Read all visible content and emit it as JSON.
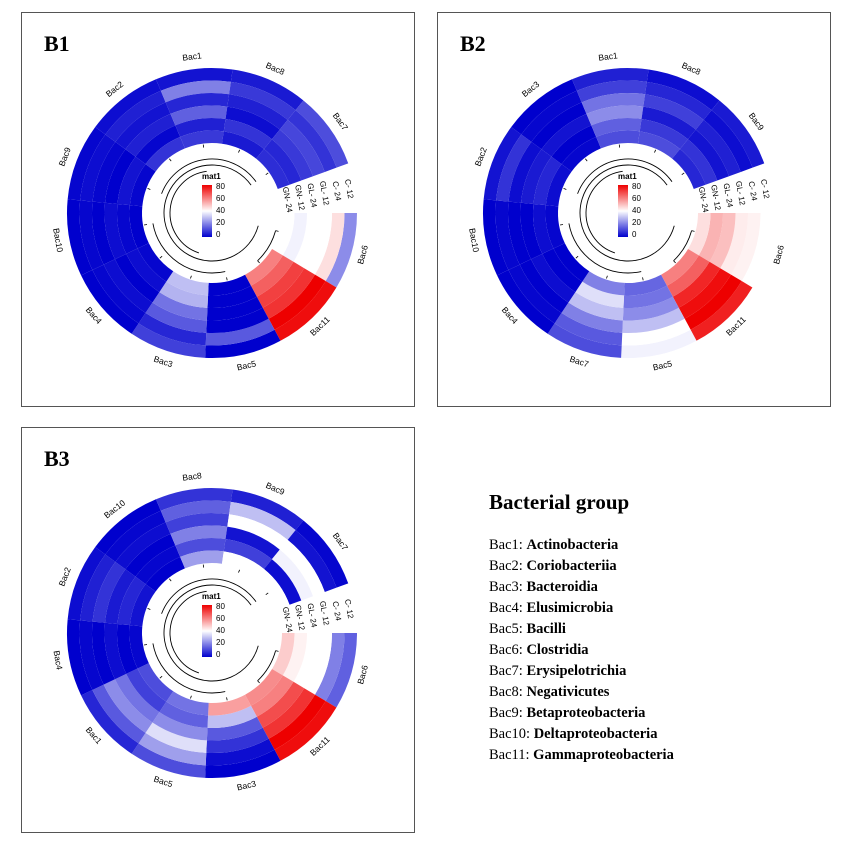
{
  "colors": {
    "low": "#0000cd",
    "mid": "#ffffff",
    "high": "#ee0000"
  },
  "color_legend": {
    "title": "mat1",
    "ticks": [
      "80",
      "60",
      "40",
      "20",
      "0"
    ]
  },
  "track_labels": [
    "C- 12",
    "C- 24",
    "GL- 12",
    "GL- 24",
    "GN- 12",
    "GN- 24"
  ],
  "chart_data": [
    {
      "type": "heatmap",
      "panel": "B1",
      "sectors": [
        "Bac6",
        "Bac11",
        "Bac5",
        "Bac3",
        "Bac4",
        "Bac10",
        "Bac9",
        "Bac2",
        "Bac1",
        "Bac8",
        "Bac7"
      ],
      "tracks": [
        "C- 12",
        "C- 24",
        "GL- 12",
        "GL- 24",
        "GN- 12",
        "GN- 24"
      ],
      "scale": [
        0,
        80
      ],
      "values": [
        [
          22,
          45,
          40,
          40,
          38,
          40
        ],
        [
          78,
          80,
          72,
          70,
          65,
          60
        ],
        [
          0,
          14,
          0,
          0,
          0,
          0
        ],
        [
          10,
          6,
          14,
          18,
          28,
          30
        ],
        [
          0,
          1,
          2,
          0,
          2,
          1
        ],
        [
          0,
          1,
          0,
          2,
          1,
          0
        ],
        [
          1,
          2,
          1,
          0,
          3,
          1
        ],
        [
          2,
          5,
          3,
          5,
          1,
          8
        ],
        [
          3,
          20,
          6,
          15,
          5,
          9
        ],
        [
          4,
          9,
          5,
          2,
          8,
          4
        ],
        [
          12,
          8,
          11,
          9,
          6,
          7
        ]
      ]
    },
    {
      "type": "heatmap",
      "panel": "B2",
      "sectors": [
        "Bac6",
        "Bac11",
        "Bac5",
        "Bac7",
        "Bac4",
        "Bac10",
        "Bac2",
        "Bac3",
        "Bac1",
        "Bac8",
        "Bac9"
      ],
      "tracks": [
        "C- 12",
        "C- 24",
        "GL- 12",
        "GL- 24",
        "GN- 12",
        "GN- 24"
      ],
      "scale": [
        0,
        80
      ],
      "values": [
        [
          40,
          42,
          43,
          50,
          52,
          45
        ],
        [
          75,
          80,
          78,
          74,
          65,
          60
        ],
        [
          38,
          40,
          30,
          22,
          18,
          16
        ],
        [
          12,
          14,
          20,
          30,
          35,
          20
        ],
        [
          0,
          1,
          0,
          2,
          0,
          0
        ],
        [
          0,
          1,
          0,
          0,
          2,
          1
        ],
        [
          3,
          8,
          2,
          4,
          6,
          2
        ],
        [
          0,
          1,
          0,
          3,
          0,
          1
        ],
        [
          5,
          10,
          18,
          22,
          15,
          12
        ],
        [
          2,
          6,
          10,
          4,
          9,
          12
        ],
        [
          4,
          2,
          5,
          3,
          8,
          6
        ]
      ]
    },
    {
      "type": "heatmap",
      "panel": "B3",
      "sectors": [
        "Bac6",
        "Bac11",
        "Bac3",
        "Bac5",
        "Bac1",
        "Bac4",
        "Bac2",
        "Bac10",
        "Bac8",
        "Bac9",
        "Bac7"
      ],
      "tracks": [
        "C- 12",
        "C- 24",
        "GL- 12",
        "GL- 24",
        "GN- 12",
        "GN- 24"
      ],
      "scale": [
        0,
        80
      ],
      "values": [
        [
          15,
          20,
          40,
          40,
          42,
          48
        ],
        [
          78,
          80,
          72,
          68,
          60,
          58
        ],
        [
          0,
          2,
          8,
          14,
          30,
          55
        ],
        [
          12,
          25,
          35,
          22,
          15,
          18
        ],
        [
          6,
          14,
          22,
          18,
          10,
          12
        ],
        [
          0,
          1,
          0,
          2,
          0,
          1
        ],
        [
          2,
          5,
          8,
          4,
          6,
          3
        ],
        [
          0,
          1,
          2,
          0,
          1,
          0
        ],
        [
          8,
          15,
          10,
          20,
          12,
          25
        ],
        [
          5,
          30,
          40,
          3,
          10,
          40
        ],
        [
          1,
          3,
          40,
          38,
          2,
          40
        ]
      ]
    }
  ],
  "legend": {
    "title": "Bacterial group",
    "items": [
      {
        "code": "Bac1:",
        "name": "Actinobacteria"
      },
      {
        "code": "Bac2:",
        "name": "Coriobacteriia"
      },
      {
        "code": "Bac3:",
        "name": "Bacteroidia"
      },
      {
        "code": "Bac4:",
        "name": "Elusimicrobia"
      },
      {
        "code": "Bac5:",
        "name": "Bacilli"
      },
      {
        "code": "Bac6:",
        "name": "Clostridia"
      },
      {
        "code": "Bac7:",
        "name": "Erysipelotrichia"
      },
      {
        "code": "Bac8:",
        "name": "Negativicutes"
      },
      {
        "code": "Bac9:",
        "name": "Betaproteobacteria"
      },
      {
        "code": "Bac10:",
        "name": "Deltaproteobacteria"
      },
      {
        "code": "Bac11:",
        "name": "Gammaproteobacteria"
      }
    ]
  }
}
